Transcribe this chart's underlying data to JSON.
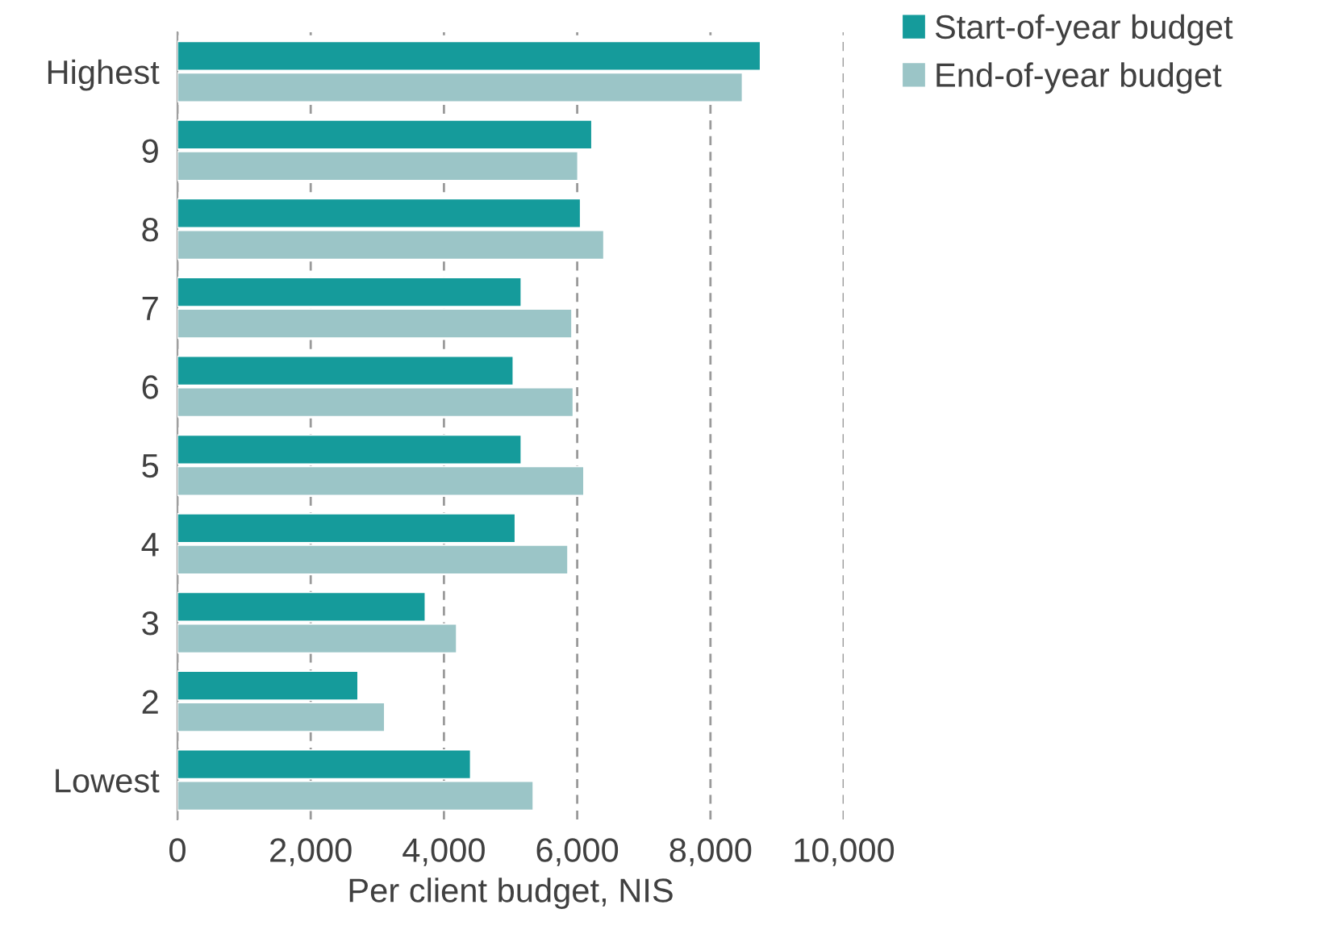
{
  "chart_data": {
    "type": "bar",
    "orientation": "horizontal",
    "xlabel": "Per client budget, NIS",
    "categories": [
      "Highest",
      "9",
      "8",
      "7",
      "6",
      "5",
      "4",
      "3",
      "2",
      "Lowest"
    ],
    "series": [
      {
        "name": "Start-of-year budget",
        "color": "#159b9b",
        "values": [
          8750,
          6220,
          6050,
          5160,
          5040,
          5160,
          5070,
          3720,
          2710,
          4400
        ]
      },
      {
        "name": "End-of-year budget",
        "color": "#9bc5c7",
        "values": [
          8480,
          6010,
          6400,
          5920,
          5940,
          6100,
          5860,
          4190,
          3110,
          5340
        ]
      }
    ],
    "xlim": [
      0,
      10000
    ],
    "xticks": [
      {
        "value": 0,
        "label": "0"
      },
      {
        "value": 2000,
        "label": "2,000"
      },
      {
        "value": 4000,
        "label": "4,000"
      },
      {
        "value": 6000,
        "label": "6,000"
      },
      {
        "value": 8000,
        "label": "8,000"
      },
      {
        "value": 10000,
        "label": "10,000"
      }
    ],
    "grid": "x",
    "legend": "top right"
  }
}
